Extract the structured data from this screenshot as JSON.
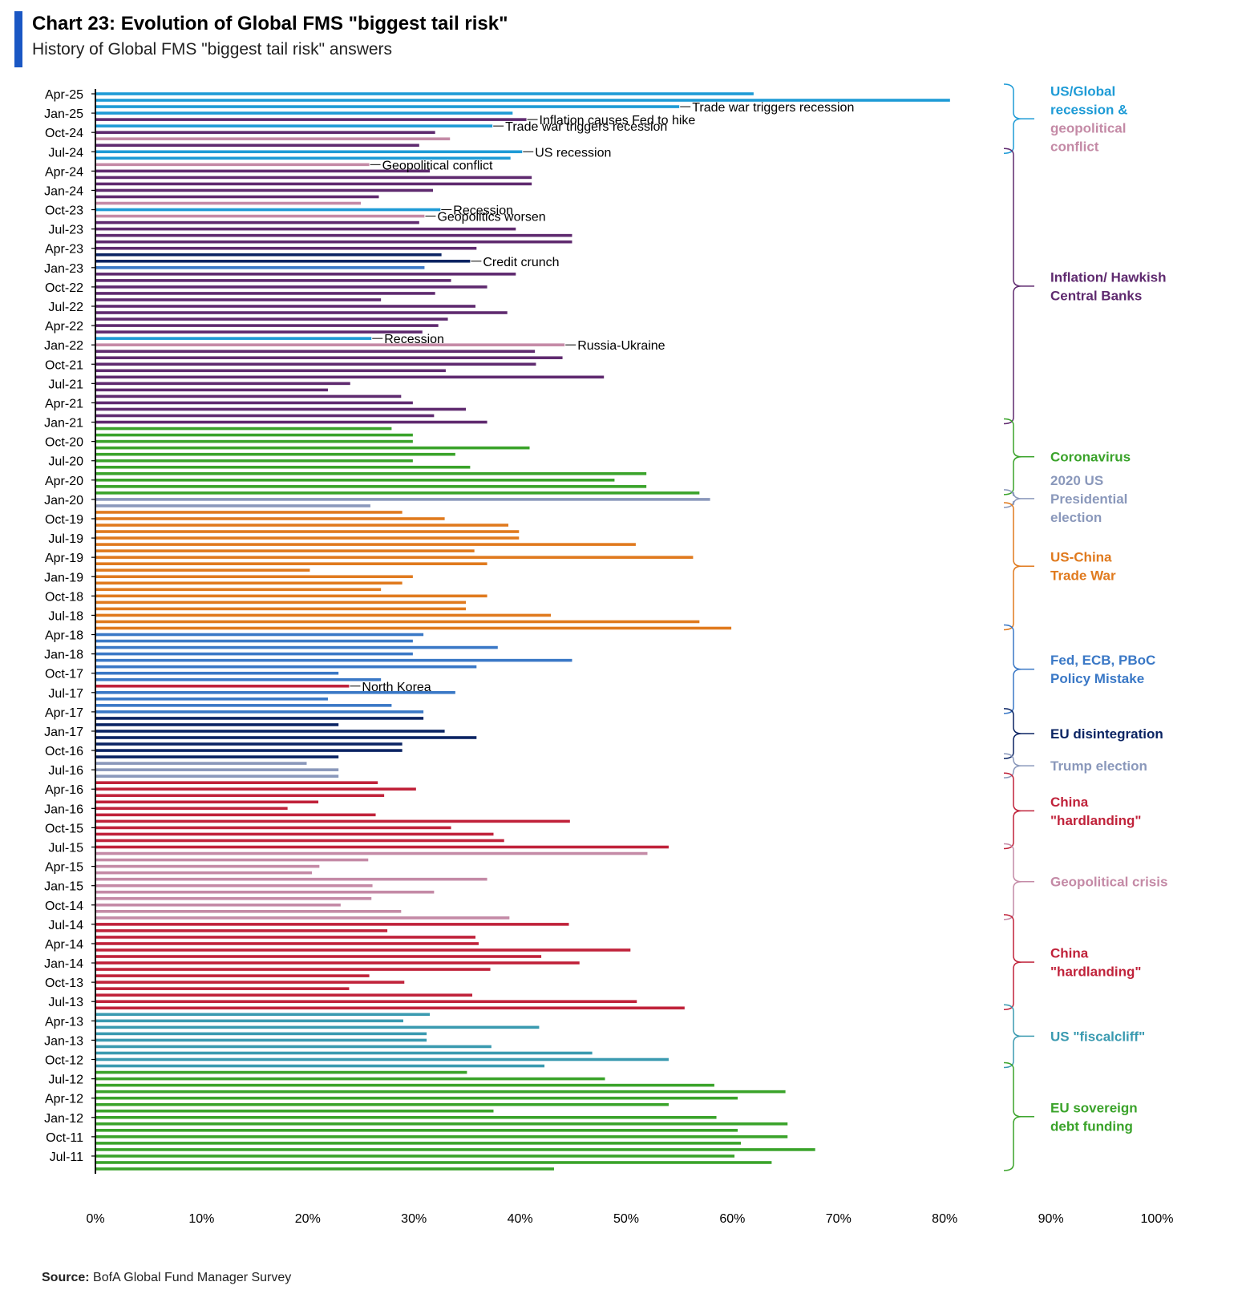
{
  "header": {
    "title": "Chart 23: Evolution of Global FMS \"biggest tail risk\"",
    "subtitle": "History of Global FMS \"biggest tail risk\" answers"
  },
  "footer": {
    "source_label": "Source:",
    "source_text": "BofA Global Fund Manager Survey"
  },
  "colors": {
    "us_global_recession": "#1e9bd6",
    "inflation_hawkish": "#5f2a6f",
    "geopolitical_conflict": "#c48aa6",
    "credit_crunch": "#0b2463",
    "coronavirus": "#3aa32a",
    "us_election_2020": "#8a98bb",
    "us_china_trade_war": "#e07a1e",
    "policy_mistake": "#3a78c6",
    "north_korea": "#c0223a",
    "eu_disintegration": "#0b2463",
    "trump_election": "#8a98bb",
    "china_hardlanding": "#c0223a",
    "geopolitical_crisis": "#c48aa6",
    "us_fiscal_cliff": "#3a9ab0",
    "eu_sovereign_debt": "#3aa32a"
  },
  "chart_data": {
    "type": "bar",
    "orientation": "horizontal",
    "title": "Chart 23: Evolution of Global FMS \"biggest tail risk\"",
    "subtitle": "History of Global FMS \"biggest tail risk\" answers",
    "xlim": [
      0,
      100
    ],
    "x_tick_labels": [
      "0%",
      "10%",
      "20%",
      "30%",
      "40%",
      "50%",
      "60%",
      "70%",
      "80%",
      "90%",
      "100%"
    ],
    "y_tick_labels": [
      "Apr-25",
      "Jan-25",
      "Oct-24",
      "Jul-24",
      "Apr-24",
      "Jan-24",
      "Oct-23",
      "Jul-23",
      "Apr-23",
      "Jan-23",
      "Oct-22",
      "Jul-22",
      "Apr-22",
      "Jan-22",
      "Oct-21",
      "Jul-21",
      "Apr-21",
      "Jan-21",
      "Oct-20",
      "Jul-20",
      "Apr-20",
      "Jan-20",
      "Oct-19",
      "Jul-19",
      "Apr-19",
      "Jan-19",
      "Oct-18",
      "Jul-18",
      "Apr-18",
      "Jan-18",
      "Oct-17",
      "Jul-17",
      "Apr-17",
      "Jan-17",
      "Oct-16",
      "Jul-16",
      "Apr-16",
      "Jan-16",
      "Oct-15",
      "Jul-15",
      "Apr-15",
      "Jan-15",
      "Oct-14",
      "Jul-14",
      "Apr-14",
      "Jan-14",
      "Oct-13",
      "Jul-13",
      "Apr-13",
      "Jan-13",
      "Oct-12",
      "Jul-12",
      "Apr-12",
      "Jan-12",
      "Oct-11",
      "Jul-11"
    ],
    "bars": [
      {
        "value": 62,
        "color": "us_global_recession"
      },
      {
        "value": 80.5,
        "color": "us_global_recession"
      },
      {
        "value": 55,
        "color": "us_global_recession"
      },
      {
        "value": 39.3,
        "color": "us_global_recession"
      },
      {
        "value": 40.6,
        "color": "inflation_hawkish"
      },
      {
        "value": 37.4,
        "color": "us_global_recession"
      },
      {
        "value": 32,
        "color": "inflation_hawkish"
      },
      {
        "value": 33.4,
        "color": "geopolitical_conflict"
      },
      {
        "value": 30.5,
        "color": "inflation_hawkish"
      },
      {
        "value": 40.2,
        "color": "us_global_recession"
      },
      {
        "value": 39.1,
        "color": "us_global_recession"
      },
      {
        "value": 25.8,
        "color": "geopolitical_conflict"
      },
      {
        "value": 31.5,
        "color": "inflation_hawkish"
      },
      {
        "value": 41.1,
        "color": "inflation_hawkish"
      },
      {
        "value": 41.1,
        "color": "inflation_hawkish"
      },
      {
        "value": 31.8,
        "color": "inflation_hawkish"
      },
      {
        "value": 26.7,
        "color": "inflation_hawkish"
      },
      {
        "value": 25,
        "color": "geopolitical_conflict"
      },
      {
        "value": 32.5,
        "color": "us_global_recession"
      },
      {
        "value": 31,
        "color": "geopolitical_conflict"
      },
      {
        "value": 30.5,
        "color": "inflation_hawkish"
      },
      {
        "value": 39.6,
        "color": "inflation_hawkish"
      },
      {
        "value": 44.9,
        "color": "inflation_hawkish"
      },
      {
        "value": 44.9,
        "color": "inflation_hawkish"
      },
      {
        "value": 35.9,
        "color": "inflation_hawkish"
      },
      {
        "value": 32.6,
        "color": "credit_crunch"
      },
      {
        "value": 35.3,
        "color": "credit_crunch"
      },
      {
        "value": 31,
        "color": "policy_mistake"
      },
      {
        "value": 39.6,
        "color": "inflation_hawkish"
      },
      {
        "value": 33.5,
        "color": "inflation_hawkish"
      },
      {
        "value": 36.9,
        "color": "inflation_hawkish"
      },
      {
        "value": 32,
        "color": "inflation_hawkish"
      },
      {
        "value": 26.9,
        "color": "inflation_hawkish"
      },
      {
        "value": 35.8,
        "color": "inflation_hawkish"
      },
      {
        "value": 38.8,
        "color": "inflation_hawkish"
      },
      {
        "value": 33.2,
        "color": "inflation_hawkish"
      },
      {
        "value": 32.3,
        "color": "inflation_hawkish"
      },
      {
        "value": 30.8,
        "color": "inflation_hawkish"
      },
      {
        "value": 26,
        "color": "us_global_recession"
      },
      {
        "value": 44.2,
        "color": "geopolitical_conflict"
      },
      {
        "value": 41.4,
        "color": "inflation_hawkish"
      },
      {
        "value": 44,
        "color": "inflation_hawkish"
      },
      {
        "value": 41.5,
        "color": "inflation_hawkish"
      },
      {
        "value": 33,
        "color": "inflation_hawkish"
      },
      {
        "value": 47.9,
        "color": "inflation_hawkish"
      },
      {
        "value": 24,
        "color": "inflation_hawkish"
      },
      {
        "value": 21.9,
        "color": "inflation_hawkish"
      },
      {
        "value": 28.8,
        "color": "inflation_hawkish"
      },
      {
        "value": 29.9,
        "color": "inflation_hawkish"
      },
      {
        "value": 34.9,
        "color": "inflation_hawkish"
      },
      {
        "value": 31.9,
        "color": "inflation_hawkish"
      },
      {
        "value": 36.9,
        "color": "inflation_hawkish"
      },
      {
        "value": 27.9,
        "color": "coronavirus"
      },
      {
        "value": 29.9,
        "color": "coronavirus"
      },
      {
        "value": 29.9,
        "color": "coronavirus"
      },
      {
        "value": 40.9,
        "color": "coronavirus"
      },
      {
        "value": 33.9,
        "color": "coronavirus"
      },
      {
        "value": 29.9,
        "color": "coronavirus"
      },
      {
        "value": 35.3,
        "color": "coronavirus"
      },
      {
        "value": 51.9,
        "color": "coronavirus"
      },
      {
        "value": 48.9,
        "color": "coronavirus"
      },
      {
        "value": 51.9,
        "color": "coronavirus"
      },
      {
        "value": 56.9,
        "color": "coronavirus"
      },
      {
        "value": 57.9,
        "color": "us_election_2020"
      },
      {
        "value": 25.9,
        "color": "us_election_2020"
      },
      {
        "value": 28.9,
        "color": "us_china_trade_war"
      },
      {
        "value": 32.9,
        "color": "us_china_trade_war"
      },
      {
        "value": 38.9,
        "color": "us_china_trade_war"
      },
      {
        "value": 39.9,
        "color": "us_china_trade_war"
      },
      {
        "value": 39.9,
        "color": "us_china_trade_war"
      },
      {
        "value": 50.9,
        "color": "us_china_trade_war"
      },
      {
        "value": 35.7,
        "color": "us_china_trade_war"
      },
      {
        "value": 56.3,
        "color": "us_china_trade_war"
      },
      {
        "value": 36.9,
        "color": "us_china_trade_war"
      },
      {
        "value": 20.2,
        "color": "us_china_trade_war"
      },
      {
        "value": 29.9,
        "color": "us_china_trade_war"
      },
      {
        "value": 28.9,
        "color": "us_china_trade_war"
      },
      {
        "value": 26.9,
        "color": "us_china_trade_war"
      },
      {
        "value": 36.9,
        "color": "us_china_trade_war"
      },
      {
        "value": 34.9,
        "color": "us_china_trade_war"
      },
      {
        "value": 34.9,
        "color": "us_china_trade_war"
      },
      {
        "value": 42.9,
        "color": "us_china_trade_war"
      },
      {
        "value": 56.9,
        "color": "us_china_trade_war"
      },
      {
        "value": 59.9,
        "color": "us_china_trade_war"
      },
      {
        "value": 30.9,
        "color": "policy_mistake"
      },
      {
        "value": 29.9,
        "color": "policy_mistake"
      },
      {
        "value": 37.9,
        "color": "policy_mistake"
      },
      {
        "value": 29.9,
        "color": "policy_mistake"
      },
      {
        "value": 44.9,
        "color": "policy_mistake"
      },
      {
        "value": 35.9,
        "color": "policy_mistake"
      },
      {
        "value": 22.9,
        "color": "policy_mistake"
      },
      {
        "value": 26.9,
        "color": "policy_mistake"
      },
      {
        "value": 23.9,
        "color": "north_korea"
      },
      {
        "value": 33.9,
        "color": "policy_mistake"
      },
      {
        "value": 21.9,
        "color": "policy_mistake"
      },
      {
        "value": 27.9,
        "color": "policy_mistake"
      },
      {
        "value": 30.9,
        "color": "policy_mistake"
      },
      {
        "value": 30.9,
        "color": "eu_disintegration"
      },
      {
        "value": 22.9,
        "color": "eu_disintegration"
      },
      {
        "value": 32.9,
        "color": "eu_disintegration"
      },
      {
        "value": 35.9,
        "color": "eu_disintegration"
      },
      {
        "value": 28.9,
        "color": "eu_disintegration"
      },
      {
        "value": 28.9,
        "color": "eu_disintegration"
      },
      {
        "value": 22.9,
        "color": "eu_disintegration"
      },
      {
        "value": 19.9,
        "color": "trump_election"
      },
      {
        "value": 22.9,
        "color": "trump_election"
      },
      {
        "value": 22.9,
        "color": "trump_election"
      },
      {
        "value": 26.6,
        "color": "china_hardlanding"
      },
      {
        "value": 30.2,
        "color": "china_hardlanding"
      },
      {
        "value": 27.2,
        "color": "china_hardlanding"
      },
      {
        "value": 21,
        "color": "china_hardlanding"
      },
      {
        "value": 18.1,
        "color": "china_hardlanding"
      },
      {
        "value": 26.4,
        "color": "china_hardlanding"
      },
      {
        "value": 44.7,
        "color": "china_hardlanding"
      },
      {
        "value": 33.5,
        "color": "china_hardlanding"
      },
      {
        "value": 37.5,
        "color": "china_hardlanding"
      },
      {
        "value": 38.5,
        "color": "china_hardlanding"
      },
      {
        "value": 54,
        "color": "china_hardlanding"
      },
      {
        "value": 52,
        "color": "geopolitical_crisis"
      },
      {
        "value": 25.7,
        "color": "geopolitical_crisis"
      },
      {
        "value": 21.1,
        "color": "geopolitical_crisis"
      },
      {
        "value": 20.4,
        "color": "geopolitical_crisis"
      },
      {
        "value": 36.9,
        "color": "geopolitical_crisis"
      },
      {
        "value": 26.1,
        "color": "geopolitical_crisis"
      },
      {
        "value": 31.9,
        "color": "geopolitical_crisis"
      },
      {
        "value": 26,
        "color": "geopolitical_crisis"
      },
      {
        "value": 23.1,
        "color": "geopolitical_crisis"
      },
      {
        "value": 28.8,
        "color": "geopolitical_crisis"
      },
      {
        "value": 39,
        "color": "geopolitical_crisis"
      },
      {
        "value": 44.6,
        "color": "china_hardlanding"
      },
      {
        "value": 27.5,
        "color": "china_hardlanding"
      },
      {
        "value": 35.8,
        "color": "china_hardlanding"
      },
      {
        "value": 36.1,
        "color": "china_hardlanding"
      },
      {
        "value": 50.4,
        "color": "china_hardlanding"
      },
      {
        "value": 42,
        "color": "china_hardlanding"
      },
      {
        "value": 45.6,
        "color": "china_hardlanding"
      },
      {
        "value": 37.2,
        "color": "china_hardlanding"
      },
      {
        "value": 25.8,
        "color": "china_hardlanding"
      },
      {
        "value": 29.1,
        "color": "china_hardlanding"
      },
      {
        "value": 23.9,
        "color": "china_hardlanding"
      },
      {
        "value": 35.5,
        "color": "china_hardlanding"
      },
      {
        "value": 51,
        "color": "china_hardlanding"
      },
      {
        "value": 55.5,
        "color": "china_hardlanding"
      },
      {
        "value": 31.5,
        "color": "us_fiscal_cliff"
      },
      {
        "value": 29,
        "color": "us_fiscal_cliff"
      },
      {
        "value": 41.8,
        "color": "us_fiscal_cliff"
      },
      {
        "value": 31.2,
        "color": "us_fiscal_cliff"
      },
      {
        "value": 31.2,
        "color": "us_fiscal_cliff"
      },
      {
        "value": 37.3,
        "color": "us_fiscal_cliff"
      },
      {
        "value": 46.8,
        "color": "us_fiscal_cliff"
      },
      {
        "value": 54,
        "color": "us_fiscal_cliff"
      },
      {
        "value": 42.3,
        "color": "us_fiscal_cliff"
      },
      {
        "value": 35,
        "color": "eu_sovereign_debt"
      },
      {
        "value": 48,
        "color": "eu_sovereign_debt"
      },
      {
        "value": 58.3,
        "color": "eu_sovereign_debt"
      },
      {
        "value": 65,
        "color": "eu_sovereign_debt"
      },
      {
        "value": 60.5,
        "color": "eu_sovereign_debt"
      },
      {
        "value": 54,
        "color": "eu_sovereign_debt"
      },
      {
        "value": 37.5,
        "color": "eu_sovereign_debt"
      },
      {
        "value": 58.5,
        "color": "eu_sovereign_debt"
      },
      {
        "value": 65.2,
        "color": "eu_sovereign_debt"
      },
      {
        "value": 60.5,
        "color": "eu_sovereign_debt"
      },
      {
        "value": 65.2,
        "color": "eu_sovereign_debt"
      },
      {
        "value": 60.8,
        "color": "eu_sovereign_debt"
      },
      {
        "value": 67.8,
        "color": "eu_sovereign_debt"
      },
      {
        "value": 60.2,
        "color": "eu_sovereign_debt"
      },
      {
        "value": 63.7,
        "color": "eu_sovereign_debt"
      },
      {
        "value": 43.2,
        "color": "eu_sovereign_debt"
      }
    ],
    "annotations": [
      {
        "text": "Trade war triggers recession",
        "bar_index": 2
      },
      {
        "text": "Inflation causes Fed to hike",
        "bar_index": 4
      },
      {
        "text": "Trade war triggers recession",
        "bar_index": 5
      },
      {
        "text": "US recession",
        "bar_index": 9
      },
      {
        "text": "Geopolitical conflict",
        "bar_index": 11
      },
      {
        "text": "Recession",
        "bar_index": 18
      },
      {
        "text": "Geopolitics worsen",
        "bar_index": 19
      },
      {
        "text": "Credit crunch",
        "bar_index": 26
      },
      {
        "text": "Recession",
        "bar_index": 38
      },
      {
        "text": "Russia-Ukraine",
        "bar_index": 39
      },
      {
        "text": "North Korea",
        "bar_index": 92
      }
    ],
    "legend_groups": [
      {
        "lines": [
          "US/Global",
          "recession &",
          "geopolitical",
          "conflict"
        ],
        "line_colors": [
          "us_global_recession",
          "us_global_recession",
          "geopolitical_conflict",
          "geopolitical_conflict"
        ],
        "bar_range": [
          0,
          9
        ]
      },
      {
        "lines": [
          "Inflation/ Hawkish",
          "Central Banks"
        ],
        "color": "inflation_hawkish",
        "bar_range": [
          10,
          51
        ]
      },
      {
        "lines": [
          "Coronavirus"
        ],
        "color": "coronavirus",
        "bar_range": [
          52,
          62
        ]
      },
      {
        "lines": [
          "2020 US",
          "Presidential",
          "election"
        ],
        "color": "us_election_2020",
        "bar_range": [
          63,
          64
        ]
      },
      {
        "lines": [
          "US-China",
          "Trade War"
        ],
        "color": "us_china_trade_war",
        "bar_range": [
          65,
          83
        ]
      },
      {
        "lines": [
          "Fed, ECB, PBoC",
          "Policy Mistake"
        ],
        "color": "policy_mistake",
        "bar_range": [
          84,
          96
        ]
      },
      {
        "lines": [
          "EU disintegration"
        ],
        "color": "eu_disintegration",
        "bar_range": [
          97,
          103
        ]
      },
      {
        "lines": [
          "Trump election"
        ],
        "color": "trump_election",
        "bar_range": [
          104,
          106
        ]
      },
      {
        "lines": [
          "China",
          "\"hardlanding\""
        ],
        "color": "china_hardlanding",
        "bar_range": [
          107,
          117
        ]
      },
      {
        "lines": [
          "Geopolitical crisis"
        ],
        "color": "geopolitical_crisis",
        "bar_range": [
          118,
          128
        ]
      },
      {
        "lines": [
          "China",
          "\"hardlanding\""
        ],
        "color": "china_hardlanding",
        "bar_range": [
          129,
          142
        ]
      },
      {
        "lines": [
          "US \"fiscalcliff\""
        ],
        "color": "us_fiscal_cliff",
        "bar_range": [
          143,
          151
        ]
      },
      {
        "lines": [
          "EU sovereign",
          "debt funding"
        ],
        "color": "eu_sovereign_debt",
        "bar_range": [
          152,
          167
        ]
      }
    ],
    "grid": false,
    "legend_position": "right"
  }
}
